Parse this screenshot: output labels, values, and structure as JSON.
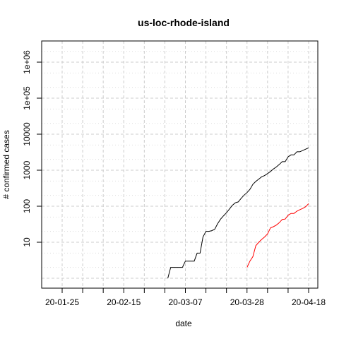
{
  "chart_data": {
    "type": "line",
    "title": "us-loc-rhode-island",
    "xlabel": "date",
    "ylabel": "# confirmed cases",
    "y_scale": "log",
    "grid": true,
    "x_tick_labels": [
      "20-01-25",
      "20-02-15",
      "20-03-07",
      "20-03-28",
      "20-04-18"
    ],
    "y_tick_labels": [
      "10",
      "100",
      "1000",
      "10000",
      "1e+05",
      "1e+06"
    ],
    "series": [
      {
        "color": "#000000",
        "x": [
          "2020-03-01",
          "2020-03-02",
          "2020-03-03",
          "2020-03-04",
          "2020-03-05",
          "2020-03-06",
          "2020-03-07",
          "2020-03-08",
          "2020-03-09",
          "2020-03-10",
          "2020-03-11",
          "2020-03-12",
          "2020-03-13",
          "2020-03-14",
          "2020-03-15",
          "2020-03-16",
          "2020-03-17",
          "2020-03-18",
          "2020-03-19",
          "2020-03-20",
          "2020-03-21",
          "2020-03-22",
          "2020-03-23",
          "2020-03-24",
          "2020-03-25",
          "2020-03-26",
          "2020-03-27",
          "2020-03-28",
          "2020-03-29",
          "2020-03-30",
          "2020-03-31",
          "2020-04-01",
          "2020-04-02",
          "2020-04-03",
          "2020-04-04",
          "2020-04-05",
          "2020-04-06",
          "2020-04-07",
          "2020-04-08",
          "2020-04-09",
          "2020-04-10",
          "2020-04-11",
          "2020-04-12",
          "2020-04-13",
          "2020-04-14",
          "2020-04-15",
          "2020-04-16",
          "2020-04-17",
          "2020-04-18"
        ],
        "values": [
          1,
          2,
          2,
          2,
          2,
          2,
          3,
          3,
          3,
          3,
          5,
          5,
          14,
          20,
          20,
          21,
          23,
          33,
          44,
          54,
          66,
          83,
          106,
          124,
          132,
          165,
          203,
          239,
          294,
          408,
          488,
          566,
          657,
          711,
          806,
          922,
          1082,
          1229,
          1450,
          1727,
          1727,
          2349,
          2665,
          2665,
          3251,
          3251,
          3529,
          3838,
          4177
        ]
      },
      {
        "color": "#ff0000",
        "x": [
          "2020-03-28",
          "2020-03-29",
          "2020-03-30",
          "2020-03-31",
          "2020-04-01",
          "2020-04-02",
          "2020-04-03",
          "2020-04-04",
          "2020-04-05",
          "2020-04-06",
          "2020-04-07",
          "2020-04-08",
          "2020-04-09",
          "2020-04-10",
          "2020-04-11",
          "2020-04-12",
          "2020-04-13",
          "2020-04-14",
          "2020-04-15",
          "2020-04-16",
          "2020-04-17",
          "2020-04-18"
        ],
        "values": [
          2,
          3,
          4,
          8,
          10,
          12,
          14,
          17,
          25,
          27,
          30,
          35,
          43,
          44,
          56,
          63,
          63,
          73,
          80,
          87,
          97,
          118
        ]
      }
    ]
  }
}
